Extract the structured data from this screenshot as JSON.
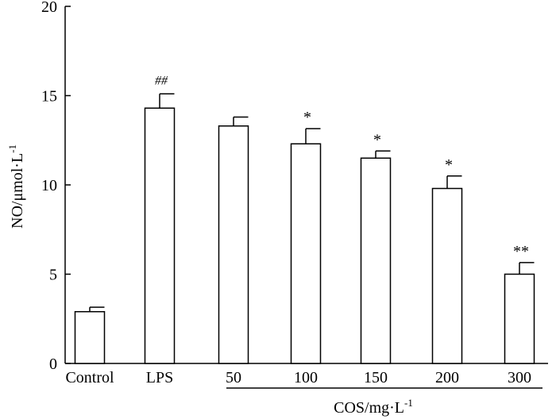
{
  "chart_data": {
    "type": "bar",
    "categories": [
      "Control",
      "LPS",
      "50",
      "100",
      "150",
      "200",
      "300"
    ],
    "values": [
      2.9,
      14.3,
      13.3,
      12.3,
      11.5,
      9.8,
      5.0
    ],
    "errors": [
      0.25,
      0.8,
      0.5,
      0.85,
      0.4,
      0.7,
      0.65
    ],
    "annotations": [
      "",
      "##",
      "",
      "*",
      "*",
      "*",
      "**"
    ],
    "ylabel": "NO/μmol·L",
    "ylabel_sup": "-1",
    "group_label": "COS/mg·L",
    "group_label_sup": "-1",
    "group_categories": [
      "50",
      "100",
      "150",
      "200",
      "300"
    ],
    "yticks": [
      0,
      5,
      10,
      15,
      20
    ],
    "ylim": [
      0,
      20
    ],
    "colors": {
      "bar_fill": "#ffffff",
      "stroke": "#000000"
    }
  }
}
